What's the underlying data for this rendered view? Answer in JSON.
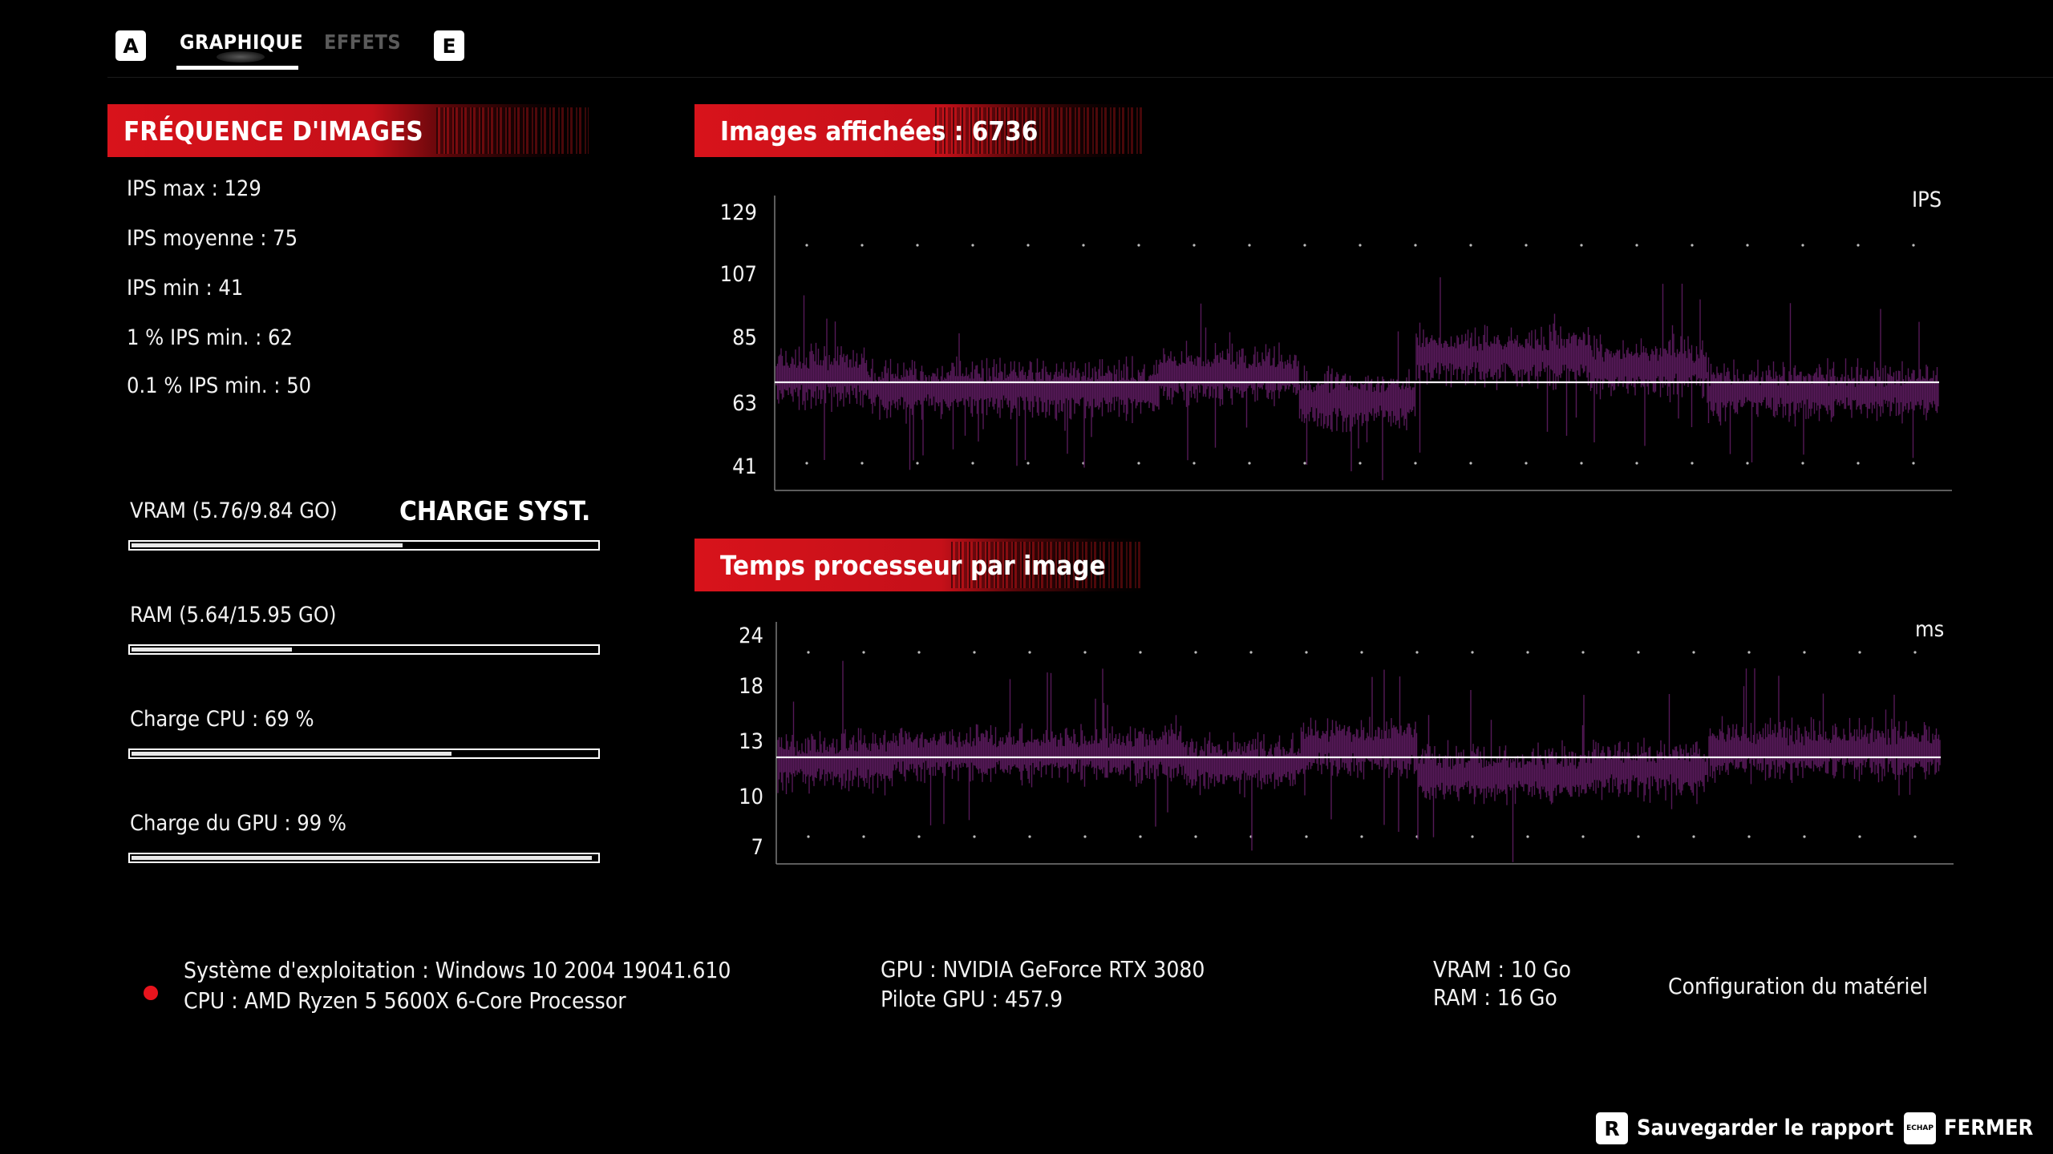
{
  "tabs": {
    "left_key": "A",
    "right_key": "E",
    "items": [
      {
        "label": "GRAPHIQUE",
        "active": true
      },
      {
        "label": "EFFETS",
        "active": false
      }
    ]
  },
  "framerate": {
    "title": "FRÉQUENCE D'IMAGES",
    "stats": [
      "IPS max : 129",
      "IPS moyenne : 75",
      "IPS min : 41",
      "1 % IPS min. : 62",
      "0.1 % IPS min. : 50"
    ]
  },
  "system_load": {
    "title": "CHARGE SYST.",
    "items": [
      {
        "label": "VRAM (5.76/9.84 GO)",
        "fraction": 0.585
      },
      {
        "label": "RAM (5.64/15.95 GO)",
        "fraction": 0.35
      },
      {
        "label": "Charge CPU : 69 %",
        "fraction": 0.69
      },
      {
        "label": "Charge du GPU : 99 %",
        "fraction": 0.99
      }
    ]
  },
  "fps_graph": {
    "title": "Images affichées : 6736",
    "unit": "IPS",
    "ticks": [
      "129",
      "107",
      "85",
      "63",
      "41"
    ],
    "ylim": [
      41,
      129
    ],
    "average": 75,
    "series_color": "#5a1a5c"
  },
  "cpu_graph": {
    "title": "Temps processeur par image",
    "unit": "ms",
    "ticks": [
      "24",
      "18",
      "13",
      "10",
      "7"
    ],
    "average": 13,
    "series_color": "#5a1a5c"
  },
  "hardware": {
    "os": "Système d'exploitation : Windows 10 2004 19041.610",
    "cpu": "CPU : AMD Ryzen 5 5600X 6-Core Processor",
    "gpu": "GPU : NVIDIA GeForce RTX 3080",
    "driver": "Pilote GPU : 457.9",
    "vram": "VRAM : 10 Go",
    "ram": "RAM : 16 Go",
    "config_label": "Configuration du matériel"
  },
  "footer": {
    "save_key": "R",
    "save_label": "Sauvegarder le rapport",
    "close_key": "ECHAP",
    "close_label": "FERMER"
  },
  "colors": {
    "accent_red": "#d8131b",
    "graph_line": "#5a1a5c"
  }
}
